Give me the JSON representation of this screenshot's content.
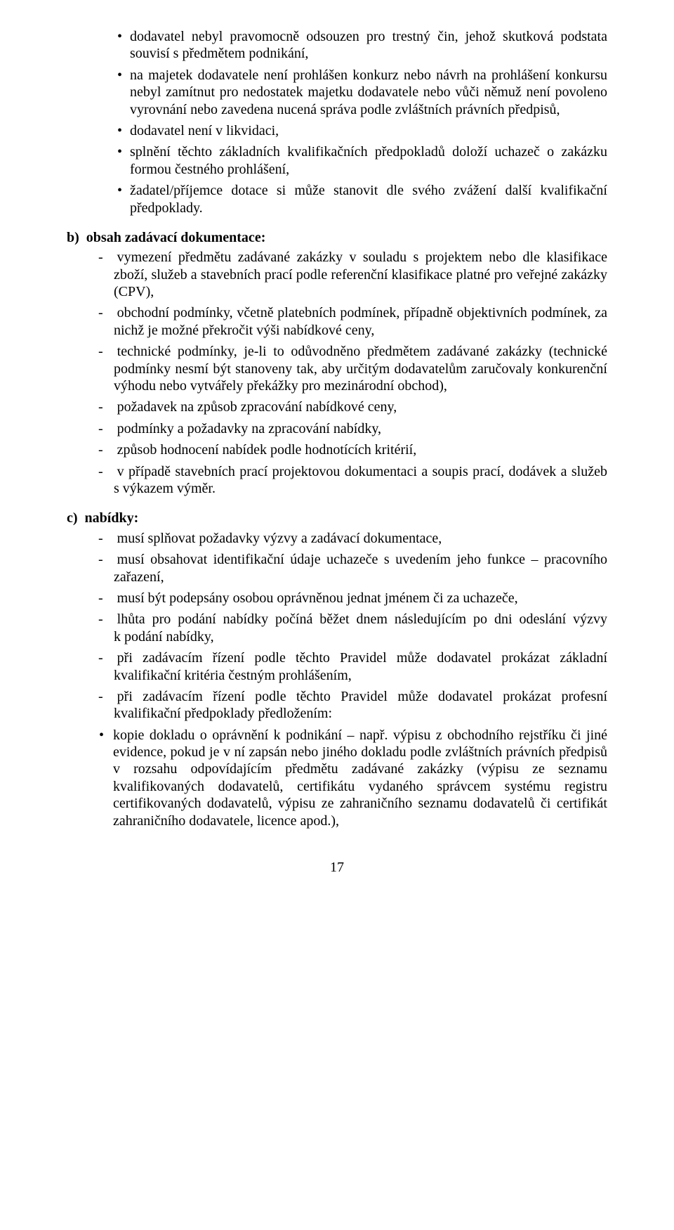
{
  "bulletsA": [
    "dodavatel nebyl pravomocně odsouzen pro trestný čin, jehož skutková podstata souvisí s předmětem podnikání,",
    "na majetek dodavatele není prohlášen konkurz nebo návrh na prohlášení konkursu nebyl zamítnut pro nedostatek majetku dodavatele nebo vůči němuž není povoleno vyrovnání nebo zavedena nucená správa podle zvláštních právních předpisů,",
    "dodavatel není v likvidaci,",
    "splnění těchto základních kvalifikačních předpokladů doloží uchazeč o zakázku formou čestného prohlášení,",
    "žadatel/příjemce dotace si může stanovit dle svého zvážení další kvalifikační předpoklady."
  ],
  "sectionB": {
    "head": "b)  obsah zadávací dokumentace:",
    "items": [
      "- vymezení předmětu zadávané zakázky v souladu s projektem nebo dle klasifikace zboží, služeb a stavebních prací podle referenční klasifikace platné pro veřejné zakázky (CPV),",
      "- obchodní podmínky, včetně platebních podmínek, případně objektivních podmínek, za nichž je možné překročit výši nabídkové ceny,",
      "- technické podmínky, je-li to odůvodněno předmětem zadávané zakázky (technické podmínky nesmí být stanoveny tak, aby určitým dodavatelům zaručovaly konkurenční výhodu nebo vytvářely překážky pro mezinárodní obchod),",
      "- požadavek na způsob zpracování nabídkové ceny,",
      "- podmínky a požadavky na zpracování nabídky,",
      "- způsob hodnocení nabídek podle hodnotících kritérií,",
      "- v případě stavebních prací projektovou dokumentaci a soupis prací, dodávek a služeb s výkazem výměr."
    ]
  },
  "sectionC": {
    "head": "c)  nabídky:",
    "items": [
      "- musí splňovat požadavky výzvy a zadávací dokumentace,",
      "- musí obsahovat identifikační údaje uchazeče s uvedením jeho funkce – pracovního zařazení,",
      "- musí být podepsány osobou oprávněnou jednat jménem či za uchazeče,",
      "- lhůta pro podání nabídky počíná běžet dnem následujícím po dni odeslání výzvy k podání nabídky,",
      "- při zadávacím řízení podle  těchto Pravidel může dodavatel prokázat základní kvalifikační kritéria čestným prohlášením,",
      "- při zadávacím řízení podle těchto Pravidel může dodavatel prokázat profesní kvalifikační předpoklady předložením:"
    ],
    "sub": [
      "kopie dokladu o oprávnění k podnikání – např. výpisu z obchodního rejstříku či jiné evidence, pokud je v ní zapsán nebo jiného dokladu podle zvláštních právních předpisů v rozsahu odpovídajícím předmětu zadávané zakázky (výpisu ze seznamu kvalifikovaných dodavatelů, certifikátu vydaného správcem systému registru certifikovaných dodavatelů, výpisu ze zahraničního seznamu dodavatelů či certifikát zahraničního dodavatele, licence apod.),"
    ]
  },
  "pageNumber": "17"
}
